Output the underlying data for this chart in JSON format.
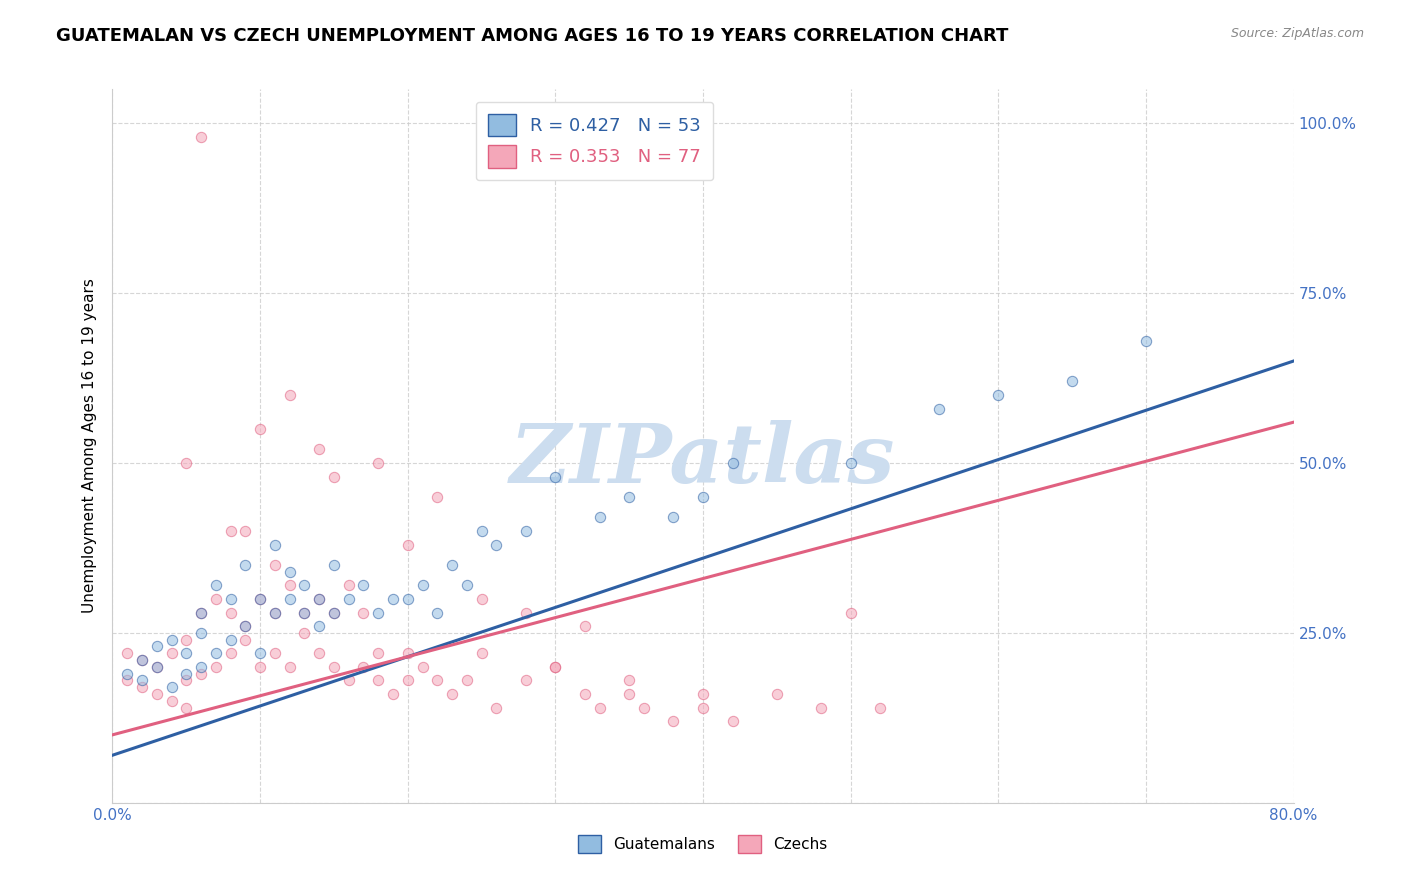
{
  "title": "GUATEMALAN VS CZECH UNEMPLOYMENT AMONG AGES 16 TO 19 YEARS CORRELATION CHART",
  "source": "Source: ZipAtlas.com",
  "ylabel": "Unemployment Among Ages 16 to 19 years",
  "xlim": [
    0.0,
    0.8
  ],
  "ylim": [
    0.0,
    1.05
  ],
  "xticks": [
    0.0,
    0.1,
    0.2,
    0.3,
    0.4,
    0.5,
    0.6,
    0.7,
    0.8
  ],
  "xticklabels": [
    "0.0%",
    "",
    "",
    "",
    "",
    "",
    "",
    "",
    "80.0%"
  ],
  "yticks": [
    0.0,
    0.25,
    0.5,
    0.75,
    1.0
  ],
  "yticklabels": [
    "",
    "25.0%",
    "50.0%",
    "75.0%",
    "100.0%"
  ],
  "tick_color": "#4472c4",
  "watermark_text": "ZIPatlas",
  "legend_r1": "R = 0.427   N = 53",
  "legend_r2": "R = 0.353   N = 77",
  "blue_color": "#92bce0",
  "pink_color": "#f4a7b9",
  "line_blue_color": "#2e5fa3",
  "line_pink_color": "#e06080",
  "blue_line_x": [
    0.0,
    0.8
  ],
  "blue_line_y": [
    0.07,
    0.65
  ],
  "pink_line_x": [
    0.0,
    0.8
  ],
  "pink_line_y": [
    0.1,
    0.56
  ],
  "scatter_blue_x": [
    0.01,
    0.02,
    0.02,
    0.03,
    0.03,
    0.04,
    0.04,
    0.05,
    0.05,
    0.06,
    0.06,
    0.06,
    0.07,
    0.07,
    0.08,
    0.08,
    0.09,
    0.09,
    0.1,
    0.1,
    0.11,
    0.11,
    0.12,
    0.12,
    0.13,
    0.13,
    0.14,
    0.14,
    0.15,
    0.15,
    0.16,
    0.17,
    0.18,
    0.19,
    0.2,
    0.21,
    0.22,
    0.23,
    0.24,
    0.25,
    0.26,
    0.28,
    0.3,
    0.33,
    0.35,
    0.38,
    0.4,
    0.42,
    0.5,
    0.56,
    0.6,
    0.65,
    0.7
  ],
  "scatter_blue_y": [
    0.19,
    0.18,
    0.21,
    0.2,
    0.23,
    0.17,
    0.24,
    0.19,
    0.22,
    0.2,
    0.25,
    0.28,
    0.22,
    0.32,
    0.24,
    0.3,
    0.26,
    0.35,
    0.22,
    0.3,
    0.28,
    0.38,
    0.3,
    0.34,
    0.32,
    0.28,
    0.3,
    0.26,
    0.28,
    0.35,
    0.3,
    0.32,
    0.28,
    0.3,
    0.3,
    0.32,
    0.28,
    0.35,
    0.32,
    0.4,
    0.38,
    0.4,
    0.48,
    0.42,
    0.45,
    0.42,
    0.45,
    0.5,
    0.5,
    0.58,
    0.6,
    0.62,
    0.68
  ],
  "scatter_pink_x": [
    0.01,
    0.01,
    0.02,
    0.02,
    0.03,
    0.03,
    0.04,
    0.04,
    0.05,
    0.05,
    0.05,
    0.06,
    0.06,
    0.07,
    0.07,
    0.08,
    0.08,
    0.09,
    0.09,
    0.1,
    0.1,
    0.11,
    0.11,
    0.11,
    0.12,
    0.12,
    0.13,
    0.13,
    0.14,
    0.14,
    0.15,
    0.15,
    0.16,
    0.16,
    0.17,
    0.17,
    0.18,
    0.18,
    0.19,
    0.2,
    0.2,
    0.21,
    0.22,
    0.23,
    0.24,
    0.25,
    0.26,
    0.28,
    0.3,
    0.32,
    0.33,
    0.35,
    0.36,
    0.38,
    0.4,
    0.42,
    0.45,
    0.48,
    0.5,
    0.52,
    0.08,
    0.05,
    0.1,
    0.12,
    0.15,
    0.18,
    0.22,
    0.25,
    0.28,
    0.32,
    0.35,
    0.4,
    0.06,
    0.09,
    0.14,
    0.2,
    0.3
  ],
  "scatter_pink_y": [
    0.18,
    0.22,
    0.17,
    0.21,
    0.16,
    0.2,
    0.15,
    0.22,
    0.18,
    0.14,
    0.24,
    0.19,
    0.28,
    0.2,
    0.3,
    0.22,
    0.28,
    0.24,
    0.26,
    0.2,
    0.3,
    0.22,
    0.28,
    0.35,
    0.2,
    0.32,
    0.25,
    0.28,
    0.22,
    0.3,
    0.2,
    0.28,
    0.18,
    0.32,
    0.2,
    0.28,
    0.18,
    0.22,
    0.16,
    0.18,
    0.22,
    0.2,
    0.18,
    0.16,
    0.18,
    0.22,
    0.14,
    0.18,
    0.2,
    0.16,
    0.14,
    0.16,
    0.14,
    0.12,
    0.14,
    0.12,
    0.16,
    0.14,
    0.28,
    0.14,
    0.4,
    0.5,
    0.55,
    0.6,
    0.48,
    0.5,
    0.45,
    0.3,
    0.28,
    0.26,
    0.18,
    0.16,
    0.98,
    0.4,
    0.52,
    0.38,
    0.2
  ],
  "scatter_size": 55,
  "scatter_alpha": 0.55,
  "title_fontsize": 13,
  "axis_label_fontsize": 11,
  "tick_fontsize": 11,
  "watermark_fontsize": 60,
  "watermark_color": "#ccddef",
  "background_color": "#ffffff",
  "grid_color": "#cccccc",
  "grid_style": "--",
  "grid_alpha": 0.8,
  "source_color": "#888888"
}
